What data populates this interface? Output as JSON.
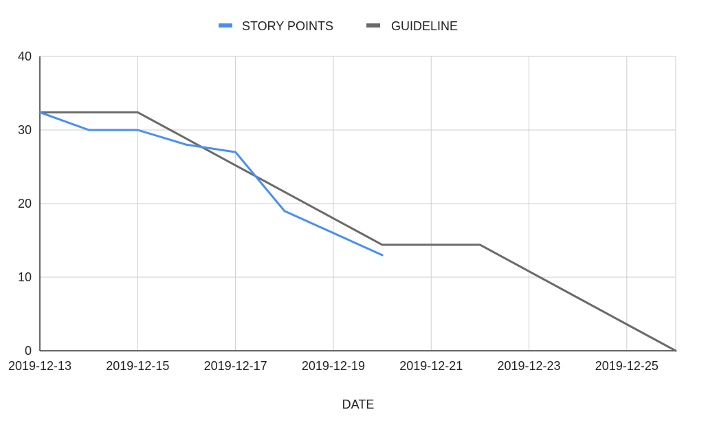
{
  "chart_data": {
    "type": "line",
    "title": "",
    "xlabel": "DATE",
    "ylabel": "",
    "x": [
      "2019-12-13",
      "2019-12-14",
      "2019-12-15",
      "2019-12-16",
      "2019-12-17",
      "2019-12-18",
      "2019-12-19",
      "2019-12-20",
      "2019-12-21",
      "2019-12-22",
      "2019-12-23",
      "2019-12-24",
      "2019-12-25",
      "2019-12-26"
    ],
    "x_tick_labels": [
      "2019-12-13",
      "2019-12-15",
      "2019-12-17",
      "2019-12-19",
      "2019-12-21",
      "2019-12-23",
      "2019-12-25"
    ],
    "ylim": [
      0,
      40
    ],
    "y_ticks": [
      0,
      10,
      20,
      30,
      40
    ],
    "grid": true,
    "legend_position": "top",
    "series": [
      {
        "name": "STORY POINTS",
        "color": "#4a8ff0",
        "values": [
          32.4,
          30,
          30,
          28,
          27,
          19,
          16,
          13,
          null,
          null,
          null,
          null,
          null,
          null
        ]
      },
      {
        "name": "GUIDELINE",
        "color": "#6a6a6a",
        "values": [
          32.4,
          32.4,
          32.4,
          28.8,
          25.2,
          21.6,
          18,
          14.4,
          14.4,
          14.4,
          10.8,
          7.2,
          3.6,
          0
        ]
      }
    ]
  }
}
